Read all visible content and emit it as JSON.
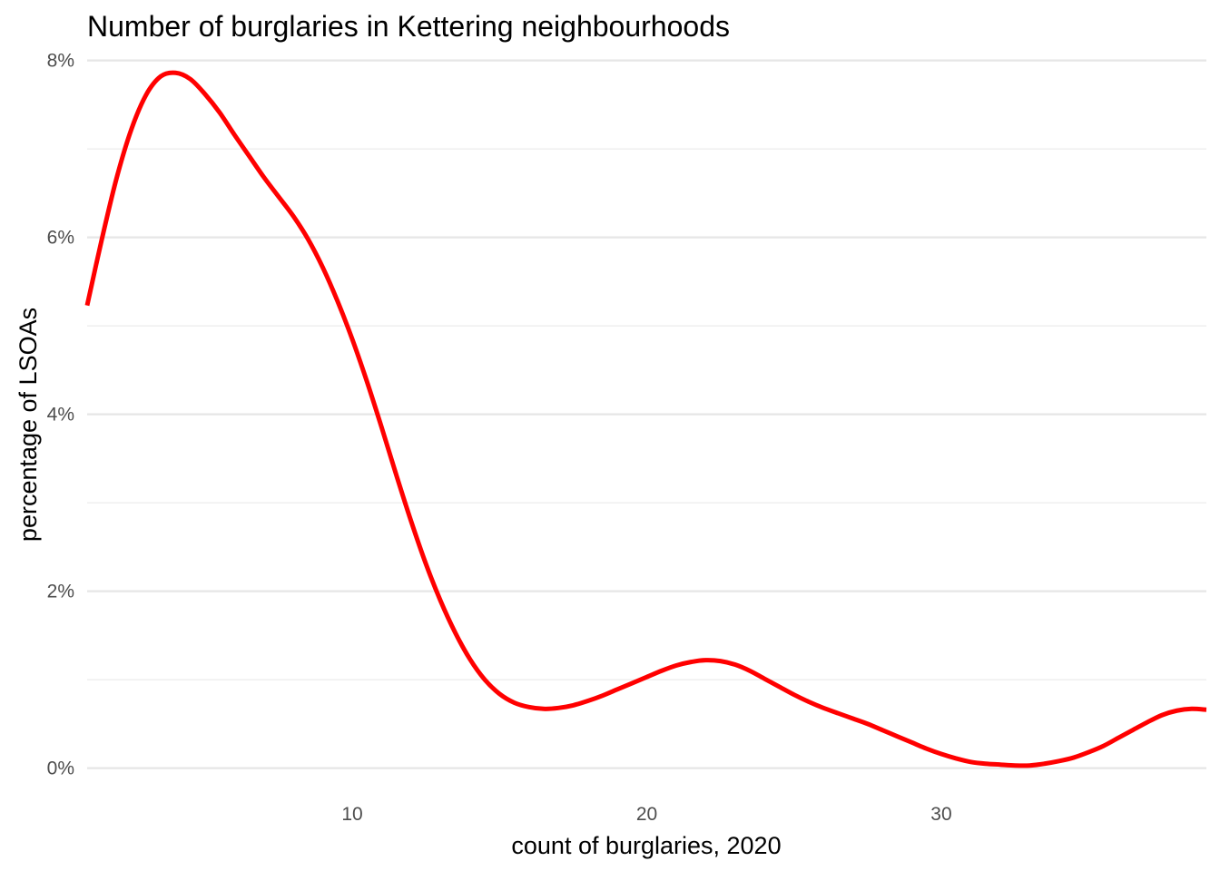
{
  "chart_data": {
    "type": "line",
    "title": "Number of burglaries in Kettering neighbourhoods",
    "xlabel": "count of burglaries, 2020",
    "ylabel": "percentage of LSOAs",
    "xlim": [
      1,
      39
    ],
    "ylim": [
      -0.0025,
      0.0815
    ],
    "x_ticks": [
      10,
      20,
      30
    ],
    "x_tick_labels": [
      "10",
      "20",
      "30"
    ],
    "y_ticks": [
      0,
      0.02,
      0.04,
      0.06,
      0.08
    ],
    "y_tick_labels": [
      "0%",
      "2%",
      "4%",
      "6%",
      "8%"
    ],
    "y_minor_ticks": [
      0.01,
      0.03,
      0.05,
      0.07
    ],
    "grid": true,
    "grid_vertical": false,
    "series_color": "#ff0000",
    "series": [
      {
        "x": [
          1,
          1.5,
          2,
          2.5,
          3,
          3.5,
          4,
          4.5,
          5,
          5.5,
          6,
          6.5,
          7,
          7.5,
          8,
          8.5,
          9,
          9.5,
          10,
          10.5,
          11,
          11.5,
          12,
          12.5,
          13,
          13.5,
          14,
          14.5,
          15,
          15.5,
          16,
          16.5,
          17,
          17.5,
          18,
          18.5,
          19,
          19.5,
          20,
          20.5,
          21,
          21.5,
          22,
          22.5,
          23,
          23.5,
          24,
          24.5,
          25,
          25.5,
          26,
          26.5,
          27,
          27.5,
          28,
          28.5,
          29,
          29.5,
          30,
          30.5,
          31,
          31.5,
          32,
          32.5,
          33,
          33.5,
          34,
          34.5,
          35,
          35.5,
          36,
          36.5,
          37,
          37.5,
          38,
          38.5,
          39
        ],
        "y": [
          0.0523,
          0.0598,
          0.0667,
          0.0722,
          0.0761,
          0.0782,
          0.0786,
          0.0779,
          0.0762,
          0.0741,
          0.0716,
          0.0692,
          0.0668,
          0.0646,
          0.0624,
          0.0598,
          0.0566,
          0.0528,
          0.0485,
          0.0437,
          0.0385,
          0.0331,
          0.0279,
          0.0231,
          0.0189,
          0.0153,
          0.0123,
          0.01,
          0.0084,
          0.0074,
          0.0069,
          0.0067,
          0.0068,
          0.0071,
          0.0076,
          0.0082,
          0.0089,
          0.0096,
          0.0103,
          0.011,
          0.0116,
          0.012,
          0.0122,
          0.0121,
          0.0117,
          0.011,
          0.0101,
          0.0092,
          0.0083,
          0.0075,
          0.0068,
          0.0062,
          0.0056,
          0.005,
          0.0043,
          0.0036,
          0.0029,
          0.0022,
          0.0016,
          0.0011,
          0.0007,
          0.0005,
          0.0004,
          0.0003,
          0.0003,
          0.0005,
          0.0008,
          0.0012,
          0.0018,
          0.0025,
          0.0034,
          0.0043,
          0.0052,
          0.006,
          0.0065,
          0.0067,
          0.0066
        ]
      }
    ]
  }
}
